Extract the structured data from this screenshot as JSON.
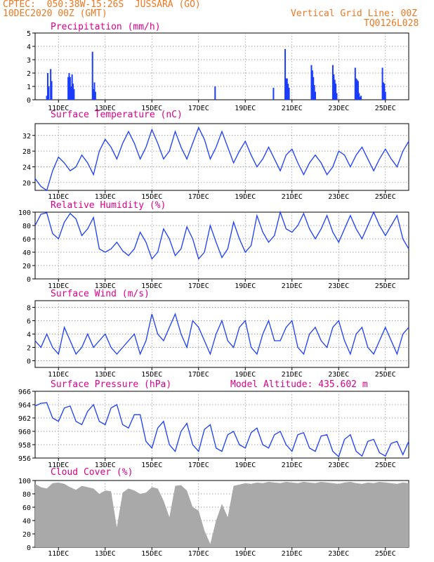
{
  "header": {
    "left_line1": "CPTEC:  050:38W-15:26S  JUSSARA (GO)",
    "left_line2": "10DEC2020 00Z (GMT)",
    "right_line1": "Vertical Grid Line: 00Z",
    "right_line2": "TQ0126L028"
  },
  "colors": {
    "header": "#f07820",
    "title": "#e0008c",
    "line": "#1a3cff",
    "bar": "#1a3cff",
    "cloud": "#a9a9a9"
  },
  "chart_data": [
    {
      "id": "precip",
      "type": "bar",
      "title": "Precipitation (mm/h)",
      "ylim": [
        0,
        5
      ],
      "yticks": [
        0,
        1,
        2,
        3,
        4,
        5
      ],
      "grid": true,
      "x_unit": "hours since 10DEC2020 00Z",
      "x": [
        12,
        13,
        14,
        16,
        17,
        34,
        35,
        36,
        37,
        38,
        39,
        40,
        59,
        60,
        61,
        62,
        185,
        245,
        257,
        258,
        259,
        260,
        261,
        284,
        285,
        286,
        287,
        288,
        306,
        307,
        308,
        309,
        310,
        329,
        330,
        331,
        332,
        333,
        334,
        335,
        357,
        358,
        359,
        360
      ],
      "values": [
        0.3,
        2.0,
        1.0,
        2.3,
        1.4,
        1.7,
        2.0,
        1.7,
        1.0,
        1.9,
        1.2,
        0.8,
        3.6,
        0.8,
        1.3,
        0.6,
        1.0,
        0.9,
        3.8,
        1.6,
        1.6,
        1.2,
        0.9,
        2.6,
        2.2,
        1.7,
        1.1,
        0.6,
        2.6,
        1.9,
        1.5,
        1.2,
        0.5,
        2.4,
        1.6,
        1.5,
        1.4,
        0.5,
        0.2,
        0.3,
        2.4,
        1.3,
        1.2,
        0.6
      ]
    },
    {
      "id": "temp",
      "type": "line",
      "title": "Surface Temperature (nC)",
      "ylim": [
        18,
        35
      ],
      "yticks": [
        20,
        24,
        28,
        32
      ],
      "grid": true,
      "x_unit": "hours since 10DEC2020 00Z",
      "x": [
        0,
        6,
        12,
        18,
        24,
        30,
        36,
        42,
        48,
        54,
        60,
        66,
        72,
        78,
        84,
        90,
        96,
        102,
        108,
        114,
        120,
        126,
        132,
        138,
        144,
        150,
        156,
        162,
        168,
        174,
        180,
        186,
        192,
        198,
        204,
        210,
        216,
        222,
        228,
        234,
        240,
        246,
        252,
        258,
        264,
        270,
        276,
        282,
        288,
        294,
        300,
        306,
        312,
        318,
        324,
        330,
        336,
        342,
        348,
        354,
        360,
        366,
        372,
        378,
        384
      ],
      "values": [
        21,
        19,
        18,
        23,
        26.5,
        25,
        23,
        24,
        27,
        25,
        22,
        28,
        31,
        29,
        26,
        30,
        33,
        30,
        26,
        29,
        33.5,
        30,
        26,
        28,
        33,
        29,
        26,
        30,
        34,
        31,
        26,
        29,
        33,
        29,
        25,
        28,
        30.5,
        27,
        24,
        26,
        29,
        26,
        23,
        27,
        28.5,
        25,
        22,
        25,
        27,
        25,
        22,
        24,
        28,
        27,
        24,
        27,
        29,
        26,
        23,
        26,
        28.5,
        26,
        24,
        28,
        30.5
      ]
    },
    {
      "id": "rh",
      "type": "line",
      "title": "Relative Humidity (%)",
      "ylim": [
        0,
        100
      ],
      "yticks": [
        0,
        20,
        40,
        60,
        80,
        100
      ],
      "grid": true,
      "x_unit": "hours since 10DEC2020 00Z",
      "x": [
        0,
        6,
        12,
        18,
        24,
        30,
        36,
        42,
        48,
        54,
        60,
        66,
        72,
        78,
        84,
        90,
        96,
        102,
        108,
        114,
        120,
        126,
        132,
        138,
        144,
        150,
        156,
        162,
        168,
        174,
        180,
        186,
        192,
        198,
        204,
        210,
        216,
        222,
        228,
        234,
        240,
        246,
        252,
        258,
        264,
        270,
        276,
        282,
        288,
        294,
        300,
        306,
        312,
        318,
        324,
        330,
        336,
        342,
        348,
        354,
        360,
        366,
        372,
        378,
        384
      ],
      "values": [
        80,
        97,
        99,
        68,
        60,
        85,
        98,
        90,
        65,
        75,
        92,
        45,
        40,
        45,
        55,
        42,
        35,
        45,
        70,
        55,
        30,
        40,
        75,
        60,
        35,
        45,
        78,
        60,
        30,
        40,
        80,
        55,
        32,
        45,
        85,
        60,
        40,
        50,
        95,
        70,
        55,
        65,
        100,
        75,
        70,
        80,
        98,
        75,
        60,
        75,
        95,
        70,
        55,
        75,
        95,
        75,
        60,
        80,
        100,
        80,
        65,
        80,
        95,
        60,
        45
      ]
    },
    {
      "id": "wind",
      "type": "line",
      "title": "Surface Wind (m/s)",
      "ylim": [
        -1,
        9
      ],
      "yticks": [
        0,
        2,
        4,
        6,
        8
      ],
      "grid": true,
      "x_unit": "hours since 10DEC2020 00Z",
      "x": [
        0,
        6,
        12,
        18,
        24,
        30,
        36,
        42,
        48,
        54,
        60,
        66,
        72,
        78,
        84,
        90,
        96,
        102,
        108,
        114,
        120,
        126,
        132,
        138,
        144,
        150,
        156,
        162,
        168,
        174,
        180,
        186,
        192,
        198,
        204,
        210,
        216,
        222,
        228,
        234,
        240,
        246,
        252,
        258,
        264,
        270,
        276,
        282,
        288,
        294,
        300,
        306,
        312,
        318,
        324,
        330,
        336,
        342,
        348,
        354,
        360,
        366,
        372,
        378,
        384
      ],
      "values": [
        3,
        2,
        4,
        2,
        1,
        5,
        3,
        1,
        2,
        4,
        2,
        3,
        4,
        2,
        1,
        2,
        3,
        4,
        1,
        3,
        7,
        4,
        3,
        5,
        7,
        4,
        2,
        6,
        5,
        3,
        1,
        4,
        6,
        3,
        2,
        5,
        6,
        2,
        1,
        4,
        6,
        3,
        3,
        5,
        6,
        2,
        1,
        4,
        5,
        3,
        2,
        5,
        6,
        3,
        1,
        4,
        5,
        2,
        1,
        3,
        5,
        3,
        1,
        4,
        5
      ]
    },
    {
      "id": "pressure",
      "type": "line",
      "title": "Surface Pressure (hPa)",
      "annotation": "Model Altitude: 435.602 m",
      "ylim": [
        956,
        966
      ],
      "yticks": [
        956,
        958,
        960,
        962,
        964,
        966
      ],
      "grid": true,
      "x_unit": "hours since 10DEC2020 00Z",
      "x": [
        0,
        6,
        12,
        18,
        24,
        30,
        36,
        42,
        48,
        54,
        60,
        66,
        72,
        78,
        84,
        90,
        96,
        102,
        108,
        114,
        120,
        126,
        132,
        138,
        144,
        150,
        156,
        162,
        168,
        174,
        180,
        186,
        192,
        198,
        204,
        210,
        216,
        222,
        228,
        234,
        240,
        246,
        252,
        258,
        264,
        270,
        276,
        282,
        288,
        294,
        300,
        306,
        312,
        318,
        324,
        330,
        336,
        342,
        348,
        354,
        360,
        366,
        372,
        378,
        384
      ],
      "values": [
        963.8,
        964.2,
        964.3,
        962,
        961.5,
        963.5,
        963.8,
        961.5,
        961,
        963,
        964,
        961.5,
        961,
        963.5,
        964,
        961,
        960.5,
        962.5,
        962.5,
        958.5,
        957.5,
        960.5,
        961.5,
        958,
        957,
        960,
        961.2,
        958,
        957,
        960.3,
        961,
        957.5,
        957,
        959.5,
        960,
        958,
        957.5,
        959.8,
        960.5,
        958,
        957.5,
        959.5,
        960,
        958,
        957,
        959.5,
        959.8,
        957.5,
        957,
        959.3,
        959.5,
        957,
        956.2,
        958.8,
        959.5,
        957,
        956.3,
        958.5,
        958.8,
        956.8,
        956.3,
        958.2,
        958.5,
        956.5,
        958.5
      ]
    },
    {
      "id": "cloud",
      "type": "area",
      "title": "Cloud Cover (%)",
      "ylim": [
        0,
        100
      ],
      "yticks": [
        0,
        20,
        40,
        60,
        80,
        100
      ],
      "grid": true,
      "x_unit": "hours since 10DEC2020 00Z",
      "x": [
        0,
        6,
        12,
        18,
        24,
        30,
        36,
        42,
        48,
        54,
        60,
        66,
        72,
        78,
        84,
        90,
        96,
        102,
        108,
        114,
        120,
        126,
        132,
        138,
        144,
        150,
        156,
        162,
        168,
        174,
        180,
        186,
        192,
        198,
        204,
        210,
        216,
        222,
        228,
        234,
        240,
        246,
        252,
        258,
        264,
        270,
        276,
        282,
        288,
        294,
        300,
        306,
        312,
        318,
        324,
        330,
        336,
        342,
        348,
        354,
        360,
        366,
        372,
        378,
        384
      ],
      "values": [
        95,
        90,
        88,
        96,
        97,
        95,
        90,
        86,
        92,
        90,
        88,
        80,
        85,
        84,
        30,
        82,
        88,
        85,
        80,
        82,
        90,
        88,
        70,
        45,
        92,
        93,
        85,
        60,
        55,
        25,
        5,
        40,
        65,
        45,
        92,
        94,
        96,
        95,
        97,
        96,
        98,
        97,
        96,
        98,
        97,
        96,
        98,
        97,
        96,
        98,
        97,
        96,
        95,
        97,
        98,
        96,
        95,
        97,
        96,
        98,
        97,
        96,
        95,
        97,
        96
      ]
    }
  ],
  "x_axis": {
    "range_hours": [
      0,
      384
    ],
    "date_ticks": [
      {
        "h": 24,
        "label": "11DEC"
      },
      {
        "h": 72,
        "label": "13DEC"
      },
      {
        "h": 120,
        "label": "15DEC"
      },
      {
        "h": 168,
        "label": "17DEC"
      },
      {
        "h": 216,
        "label": "19DEC"
      },
      {
        "h": 264,
        "label": "21DEC"
      },
      {
        "h": 312,
        "label": "23DEC"
      },
      {
        "h": 360,
        "label": "25DEC"
      }
    ]
  }
}
